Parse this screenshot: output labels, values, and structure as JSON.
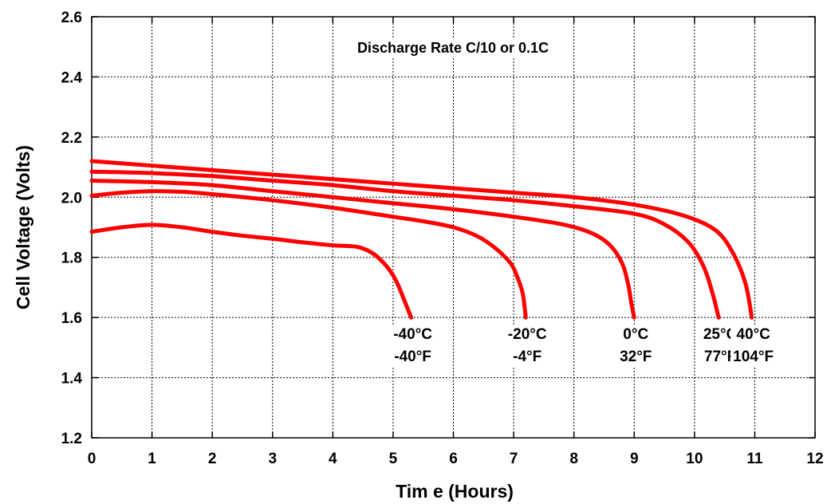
{
  "chart_data": {
    "type": "line",
    "title": "",
    "annotation": "Discharge Rate C/10 or 0.1C",
    "xlabel": "Tim e (Hours)",
    "ylabel": "Cell Voltage (Volts)",
    "xlim": [
      0,
      12
    ],
    "ylim": [
      1.2,
      2.6
    ],
    "x_ticks": [
      "0",
      "1",
      "2",
      "3",
      "4",
      "5",
      "6",
      "7",
      "8",
      "9",
      "10",
      "11",
      "12"
    ],
    "y_ticks": [
      "1.2",
      "1.4",
      "1.6",
      "1.8",
      "2.0",
      "2.2",
      "2.4",
      "2.6"
    ],
    "grid": true,
    "line_color": "#ff0000",
    "series": [
      {
        "label_c": "-40°C",
        "label_f": "-40°F",
        "points": [
          [
            0,
            1.885
          ],
          [
            0.5,
            1.9
          ],
          [
            1,
            1.908
          ],
          [
            1.5,
            1.9
          ],
          [
            2,
            1.885
          ],
          [
            2.5,
            1.872
          ],
          [
            3,
            1.862
          ],
          [
            3.5,
            1.85
          ],
          [
            4,
            1.84
          ],
          [
            4.4,
            1.835
          ],
          [
            4.65,
            1.815
          ],
          [
            4.85,
            1.78
          ],
          [
            5,
            1.74
          ],
          [
            5.1,
            1.7
          ],
          [
            5.2,
            1.65
          ],
          [
            5.3,
            1.6
          ]
        ]
      },
      {
        "label_c": "-20°C",
        "label_f": "-4°F",
        "points": [
          [
            0,
            2.005
          ],
          [
            0.5,
            2.015
          ],
          [
            1,
            2.02
          ],
          [
            1.5,
            2.018
          ],
          [
            2,
            2.01
          ],
          [
            3,
            1.99
          ],
          [
            4,
            1.965
          ],
          [
            5,
            1.935
          ],
          [
            5.5,
            1.92
          ],
          [
            6,
            1.9
          ],
          [
            6.4,
            1.87
          ],
          [
            6.7,
            1.83
          ],
          [
            6.95,
            1.78
          ],
          [
            7.05,
            1.74
          ],
          [
            7.15,
            1.68
          ],
          [
            7.2,
            1.6
          ]
        ]
      },
      {
        "label_c": "0°C",
        "label_f": "32°F",
        "points": [
          [
            0,
            2.055
          ],
          [
            1,
            2.05
          ],
          [
            2,
            2.04
          ],
          [
            3,
            2.02
          ],
          [
            4,
            2.0
          ],
          [
            5,
            1.98
          ],
          [
            6,
            1.96
          ],
          [
            7,
            1.935
          ],
          [
            7.8,
            1.91
          ],
          [
            8.3,
            1.88
          ],
          [
            8.6,
            1.84
          ],
          [
            8.8,
            1.78
          ],
          [
            8.9,
            1.71
          ],
          [
            8.95,
            1.65
          ],
          [
            9,
            1.6
          ]
        ]
      },
      {
        "label_c": "25°C",
        "label_f": "77°F",
        "points": [
          [
            0,
            2.085
          ],
          [
            1,
            2.08
          ],
          [
            2,
            2.07
          ],
          [
            3,
            2.055
          ],
          [
            4,
            2.04
          ],
          [
            5,
            2.02
          ],
          [
            6,
            2.005
          ],
          [
            7,
            1.99
          ],
          [
            8,
            1.97
          ],
          [
            9,
            1.945
          ],
          [
            9.5,
            1.91
          ],
          [
            9.9,
            1.85
          ],
          [
            10.15,
            1.77
          ],
          [
            10.3,
            1.68
          ],
          [
            10.4,
            1.6
          ]
        ]
      },
      {
        "label_c": "40°C",
        "label_f": "104°F",
        "points": [
          [
            0,
            2.12
          ],
          [
            1,
            2.105
          ],
          [
            2,
            2.09
          ],
          [
            3,
            2.075
          ],
          [
            4,
            2.06
          ],
          [
            5,
            2.045
          ],
          [
            6,
            2.03
          ],
          [
            7,
            2.015
          ],
          [
            8,
            2.0
          ],
          [
            9,
            1.975
          ],
          [
            9.8,
            1.94
          ],
          [
            10.35,
            1.89
          ],
          [
            10.65,
            1.81
          ],
          [
            10.85,
            1.71
          ],
          [
            10.95,
            1.6
          ]
        ]
      }
    ]
  }
}
